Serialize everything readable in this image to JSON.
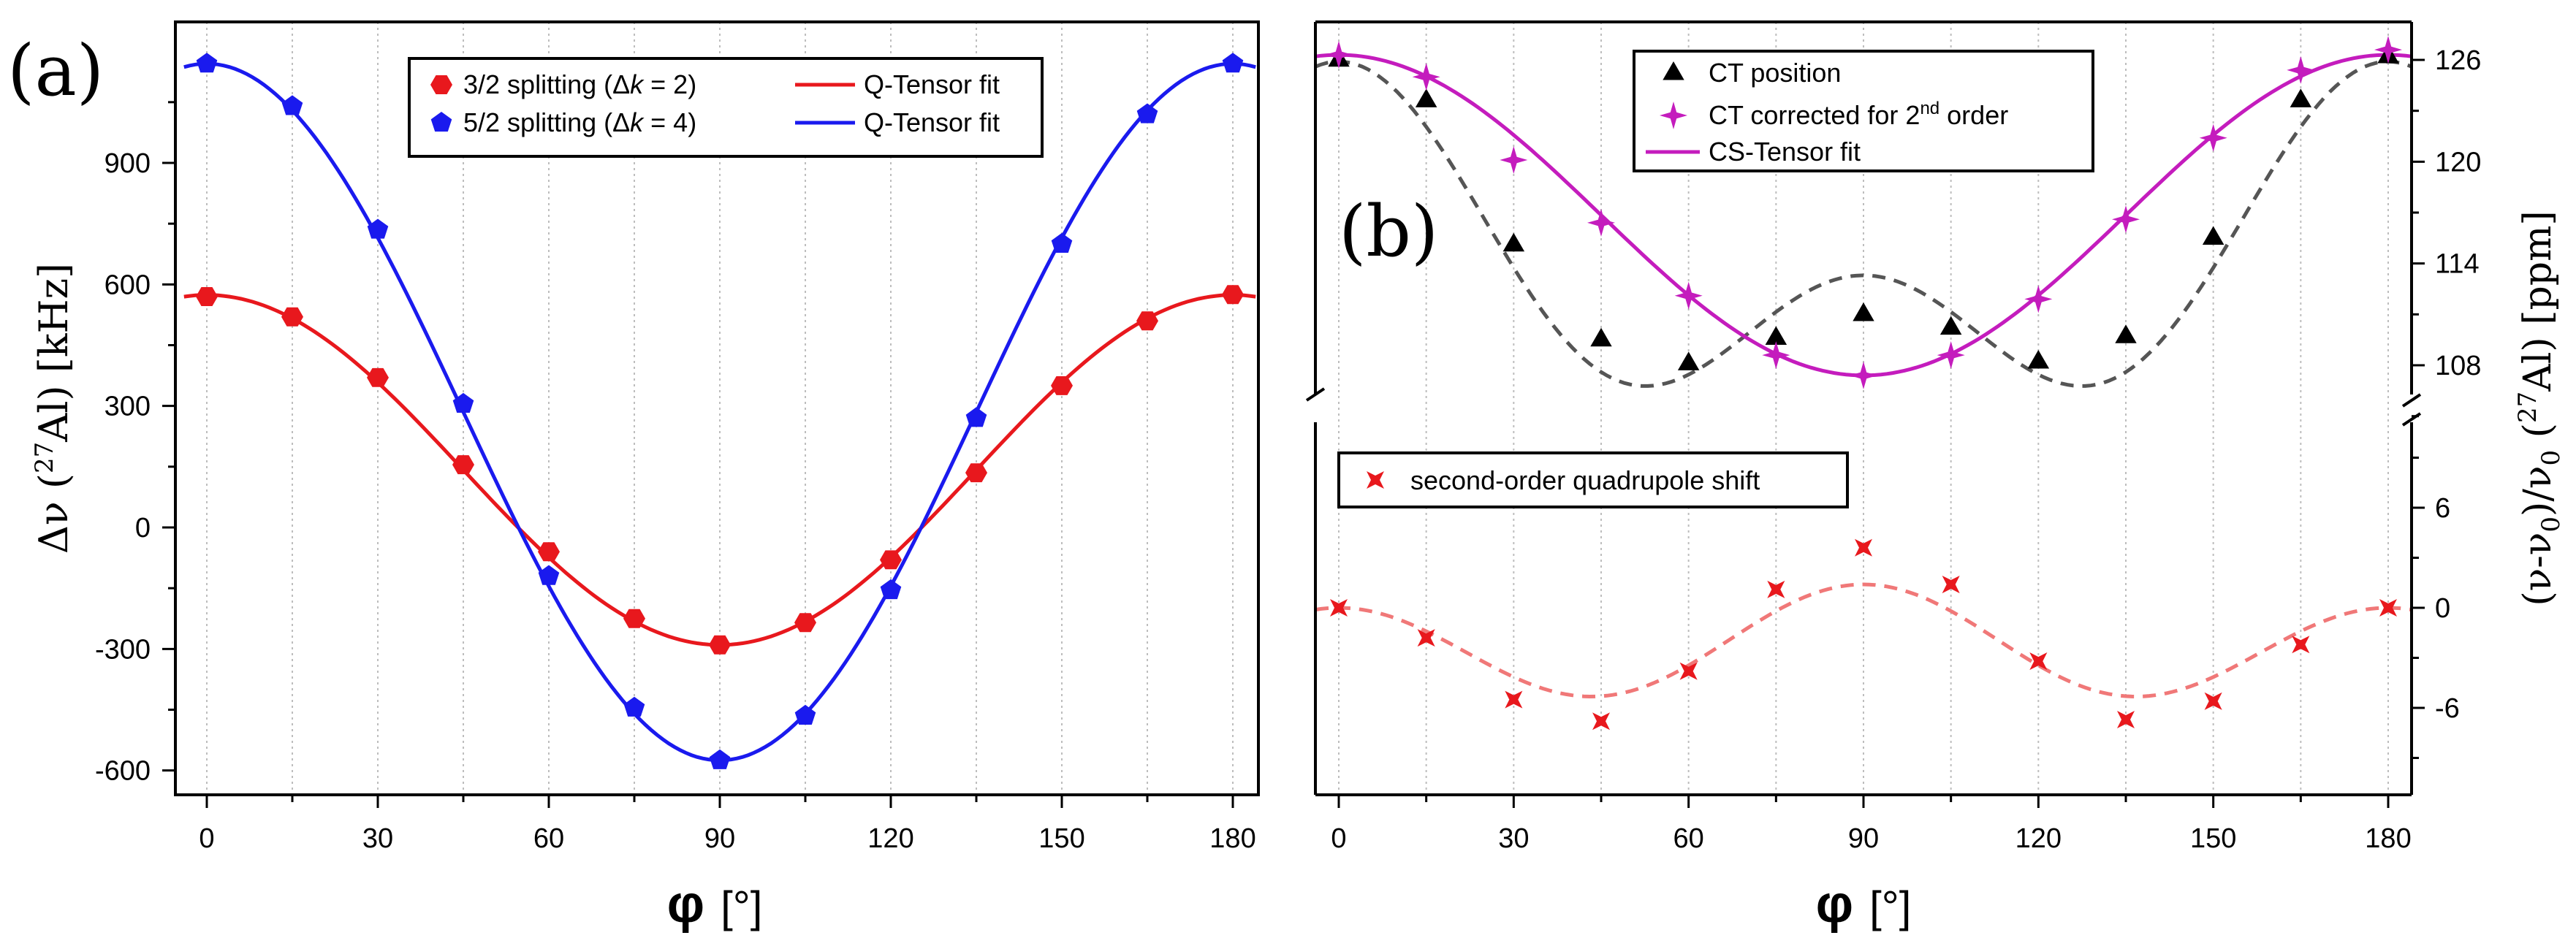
{
  "chart_data": [
    {
      "panel": "(a)",
      "type": "scatter",
      "xlabel": "φ",
      "xunit": "[°]",
      "ylabel_parts": [
        "Δν (",
        "27",
        "Al) [kHz]"
      ],
      "xlim": [
        -4,
        184
      ],
      "ylim": [
        -700,
        1230
      ],
      "xticks": [
        "0",
        "30",
        "60",
        "90",
        "120",
        "150",
        "180"
      ],
      "yticks": [
        "-600",
        "-300",
        "0",
        "300",
        "600",
        "900"
      ],
      "grid": "vertical dotted at every 15°",
      "legend_placement": "top-center",
      "legend": {
        "row1_marker": "3/2 splitting (Δ",
        "row1_k": "k",
        "row1_tail": " = 2)",
        "row1_fit": "Q-Tensor fit",
        "row2_marker": "5/2 splitting (Δ",
        "row2_k": "k",
        "row2_tail": " = 4)",
        "row2_fit": "Q-Tensor fit"
      },
      "series": [
        {
          "name": "3/2 splitting (Δk = 2)",
          "color": "#e8181d",
          "marker": "hexagon",
          "x": [
            0,
            15,
            30,
            45,
            60,
            75,
            90,
            105,
            120,
            135,
            150,
            165,
            180
          ],
          "y": [
            570,
            520,
            370,
            155,
            -60,
            -225,
            -290,
            -235,
            -80,
            135,
            350,
            510,
            575
          ]
        },
        {
          "name": "5/2 splitting (Δk = 4)",
          "color": "#1a1aee",
          "marker": "pentagon",
          "x": [
            0,
            15,
            30,
            45,
            60,
            75,
            90,
            105,
            120,
            135,
            150,
            165,
            180
          ],
          "y": [
            1145,
            1040,
            735,
            305,
            -120,
            -445,
            -575,
            -465,
            -155,
            270,
            700,
            1020,
            1145
          ]
        }
      ],
      "fits": [
        {
          "name": "Q-Tensor fit",
          "color": "#e8181d",
          "amplitude": 432,
          "offset": 142,
          "min": -290
        },
        {
          "name": "Q-Tensor fit",
          "color": "#1a1aee",
          "amplitude": 860,
          "offset": 285,
          "min": -575
        }
      ]
    },
    {
      "panel": "(b)",
      "type": "scatter",
      "xlabel": "φ",
      "xunit": "[°]",
      "ylabel_parts": [
        "(ν-ν",
        "0",
        ")/ν",
        "0",
        " (",
        "27",
        "Al) [ppm]"
      ],
      "xlim": [
        -4,
        184
      ],
      "upper": {
        "ylim": [
          102.7,
          127.3
        ],
        "yticks": [
          "108",
          "114",
          "120",
          "126"
        ],
        "legend_placement": "top-center",
        "legend": {
          "ct_position": "CT position",
          "ct_corrected_pre": "CT corrected for 2",
          "ct_corrected_sup": "nd",
          "ct_corrected_post": " order",
          "cs_fit": "CS-Tensor fit"
        },
        "series": [
          {
            "name": "CT position",
            "color": "#000000",
            "marker": "triangle",
            "x": [
              0,
              15,
              30,
              45,
              60,
              75,
              90,
              105,
              120,
              135,
              150,
              165,
              180
            ],
            "y": [
              126.1,
              123.7,
              115.2,
              109.6,
              108.2,
              109.7,
              111.1,
              110.3,
              108.3,
              109.8,
              115.6,
              123.7,
              126.3
            ]
          },
          {
            "name": "CT corrected for 2nd order",
            "color": "#c41cbd",
            "marker": "diamond-star",
            "x": [
              0,
              15,
              30,
              45,
              60,
              75,
              90,
              105,
              120,
              135,
              150,
              165,
              180
            ],
            "y": [
              126.3,
              125.0,
              120.1,
              116.4,
              112.1,
              108.6,
              107.4,
              108.6,
              111.9,
              116.6,
              121.4,
              125.4,
              126.6
            ]
          }
        ],
        "fits": [
          {
            "name": "CS-Tensor fit",
            "color": "#c41cbd",
            "style": "solid",
            "mean": 116.85,
            "amplitude": 9.45
          },
          {
            "name": "CT position fit",
            "color": "#555555",
            "style": "dashed",
            "c0": 113.6,
            "c2": 6.3,
            "c4": 6.0
          }
        ]
      },
      "lower": {
        "ylim": [
          -9.3,
          10.3
        ],
        "yticks": [
          "-6",
          "0",
          "6"
        ],
        "legend_placement": "top-left",
        "legend": {
          "label": "second-order quadrupole shift"
        },
        "series": [
          {
            "name": "second-order quadrupole shift",
            "color": "#e8181d",
            "marker": "x-star",
            "x": [
              0,
              15,
              30,
              45,
              60,
              75,
              90,
              105,
              120,
              135,
              150,
              165,
              180
            ],
            "y": [
              0,
              -1.8,
              -5.5,
              -6.8,
              -3.8,
              1.1,
              3.6,
              1.4,
              -3.2,
              -6.7,
              -5.6,
              -2.2,
              0
            ]
          }
        ],
        "fits": [
          {
            "name": "second-order quadrupole shift fit",
            "color": "#f07878",
            "style": "dashed",
            "c0": -2.3,
            "c2": -0.7,
            "c4": 3.0
          }
        ]
      }
    }
  ]
}
